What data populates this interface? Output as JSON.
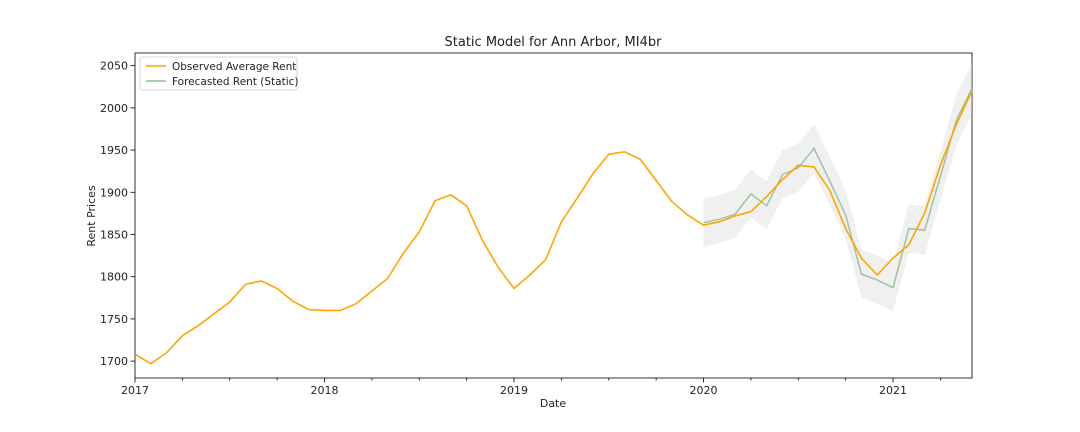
{
  "chart_data": {
    "type": "line",
    "title": "Static Model for Ann Arbor, MI4br",
    "xlabel": "Date",
    "ylabel": "Rent Prices",
    "xlim": [
      "2017-01",
      "2021-06"
    ],
    "ylim": [
      1680,
      2065
    ],
    "x_ticks": [
      "2017",
      "2018",
      "2019",
      "2020",
      "2021"
    ],
    "y_ticks": [
      1700,
      1750,
      1800,
      1850,
      1900,
      1950,
      2000,
      2050
    ],
    "legend": "top-left",
    "grid": false,
    "series": [
      {
        "name": "Observed Average Rent",
        "color": "#FFA500",
        "x": [
          "2017-01",
          "2017-02",
          "2017-03",
          "2017-04",
          "2017-05",
          "2017-06",
          "2017-07",
          "2017-08",
          "2017-09",
          "2017-10",
          "2017-11",
          "2017-12",
          "2018-01",
          "2018-02",
          "2018-03",
          "2018-04",
          "2018-05",
          "2018-06",
          "2018-07",
          "2018-08",
          "2018-09",
          "2018-10",
          "2018-11",
          "2018-12",
          "2019-01",
          "2019-02",
          "2019-03",
          "2019-04",
          "2019-05",
          "2019-06",
          "2019-07",
          "2019-08",
          "2019-09",
          "2019-10",
          "2019-11",
          "2019-12",
          "2020-01",
          "2020-02",
          "2020-03",
          "2020-04",
          "2020-05",
          "2020-06",
          "2020-07",
          "2020-08",
          "2020-09",
          "2020-10",
          "2020-11",
          "2020-12",
          "2021-01",
          "2021-02",
          "2021-03",
          "2021-04",
          "2021-05",
          "2021-06"
        ],
        "values": [
          1708,
          1697,
          1710,
          1730,
          1742,
          1756,
          1770,
          1791,
          1795,
          1786,
          1771,
          1761,
          1760,
          1760,
          1768,
          1783,
          1798,
          1828,
          1853,
          1890,
          1897,
          1884,
          1843,
          1811,
          1786,
          1802,
          1820,
          1865,
          1893,
          1922,
          1945,
          1948,
          1939,
          1914,
          1889,
          1873,
          1861,
          1865,
          1872,
          1877,
          1895,
          1915,
          1932,
          1930,
          1902,
          1857,
          1822,
          1802,
          1822,
          1838,
          1875,
          1932,
          1980,
          2020
        ]
      },
      {
        "name": "Forecasted Rent (Static)",
        "color": "#8FBC8F",
        "x": [
          "2020-01",
          "2020-02",
          "2020-03",
          "2020-04",
          "2020-05",
          "2020-06",
          "2020-07",
          "2020-08",
          "2020-09",
          "2020-10",
          "2020-11",
          "2020-12",
          "2021-01",
          "2021-02",
          "2021-03",
          "2021-04",
          "2021-05",
          "2021-06"
        ],
        "values": [
          1864,
          1868,
          1874,
          1898,
          1884,
          1921,
          1929,
          1952,
          1913,
          1873,
          1803,
          1796,
          1787,
          1857,
          1855,
          1919,
          1985,
          2023
        ],
        "ci_lower": [
          1835,
          1840,
          1846,
          1870,
          1856,
          1893,
          1901,
          1923,
          1885,
          1845,
          1775,
          1768,
          1759,
          1828,
          1826,
          1890,
          1955,
          1993
        ],
        "ci_upper": [
          1893,
          1897,
          1903,
          1927,
          1913,
          1950,
          1958,
          1981,
          1942,
          1902,
          1832,
          1825,
          1816,
          1886,
          1884,
          1948,
          2015,
          2053
        ]
      }
    ]
  }
}
